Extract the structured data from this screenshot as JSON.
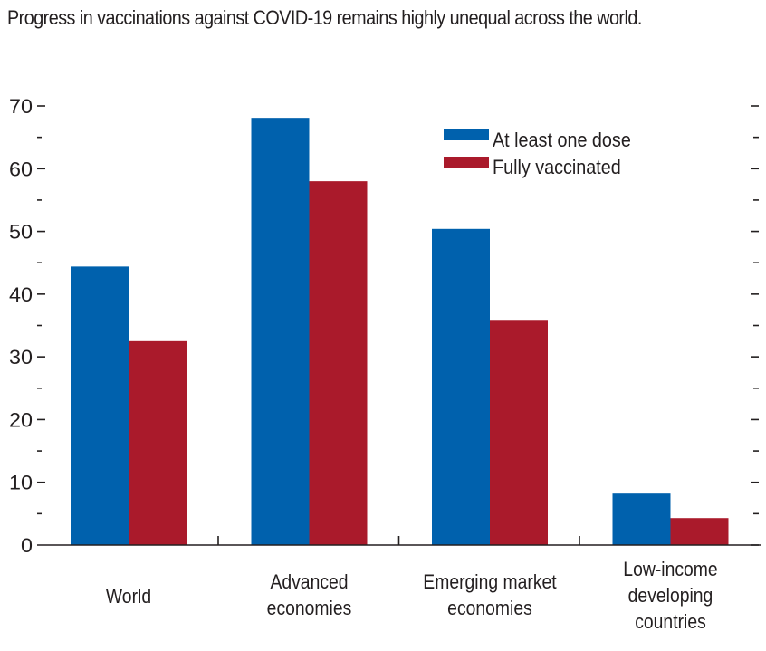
{
  "title": "Progress in vaccinations against COVID-19 remains highly unequal across the world.",
  "colors": {
    "series1": "#0061ad",
    "series2": "#aa1a2b",
    "axis": "#231f20"
  },
  "chart_data": {
    "type": "bar",
    "title": "Progress in vaccinations against COVID-19 remains highly unequal across the world.",
    "xlabel": "",
    "ylabel": "",
    "categories": [
      [
        "World"
      ],
      [
        "Advanced",
        "economies"
      ],
      [
        "Emerging market",
        "economies"
      ],
      [
        "Low-income",
        "developing",
        "countries"
      ]
    ],
    "series": [
      {
        "name": "At least one dose",
        "color": "#0061ad",
        "values": [
          44.4,
          68.1,
          50.4,
          8.2
        ]
      },
      {
        "name": "Fully vaccinated",
        "color": "#aa1a2b",
        "values": [
          32.5,
          58.0,
          35.9,
          4.3
        ]
      }
    ],
    "ylim": [
      0,
      70
    ],
    "yticks": [
      0,
      10,
      20,
      30,
      40,
      50,
      60,
      70
    ],
    "minor_step": 5,
    "grid": false,
    "legend": {
      "position": "top-right",
      "entries": [
        "At least one dose",
        "Fully vaccinated"
      ]
    }
  }
}
